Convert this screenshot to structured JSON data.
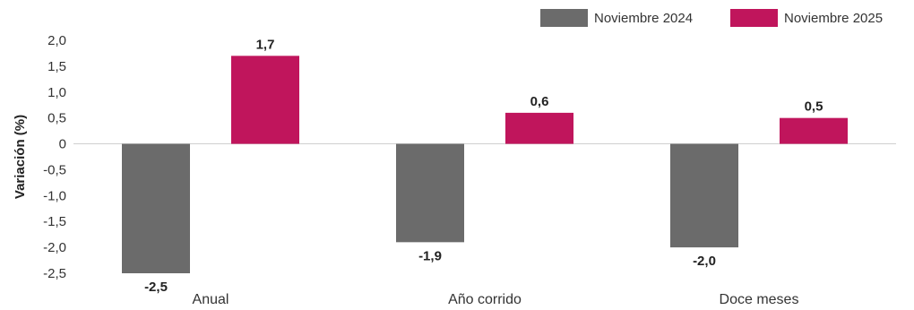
{
  "chart_data": {
    "type": "bar",
    "title": "",
    "xlabel": "",
    "ylabel": "Variación (%)",
    "categories": [
      "Anual",
      "Año corrido",
      "Doce meses"
    ],
    "series": [
      {
        "name": "Noviembre 2024",
        "color": "#6b6b6b",
        "values": [
          -2.5,
          -1.9,
          -2.0
        ],
        "labels": [
          "-2,5",
          "-1,9",
          "-2,0"
        ]
      },
      {
        "name": "Noviembre 2025",
        "color": "#c0155c",
        "values": [
          1.7,
          0.6,
          0.5
        ],
        "labels": [
          "1,7",
          "0,6",
          "0,5"
        ]
      }
    ],
    "ylim": [
      -2.5,
      2.0
    ],
    "yticks": [
      2.0,
      1.5,
      1.0,
      0.5,
      0,
      -0.5,
      -1.0,
      -1.5,
      -2.0,
      -2.5
    ],
    "ytick_labels": [
      "2,0",
      "1,5",
      "1,0",
      "0,5",
      "0",
      "-0,5",
      "-1,0",
      "-1,5",
      "-2,0",
      "-2,5"
    ],
    "grid": false,
    "legend_position": "top-right"
  }
}
